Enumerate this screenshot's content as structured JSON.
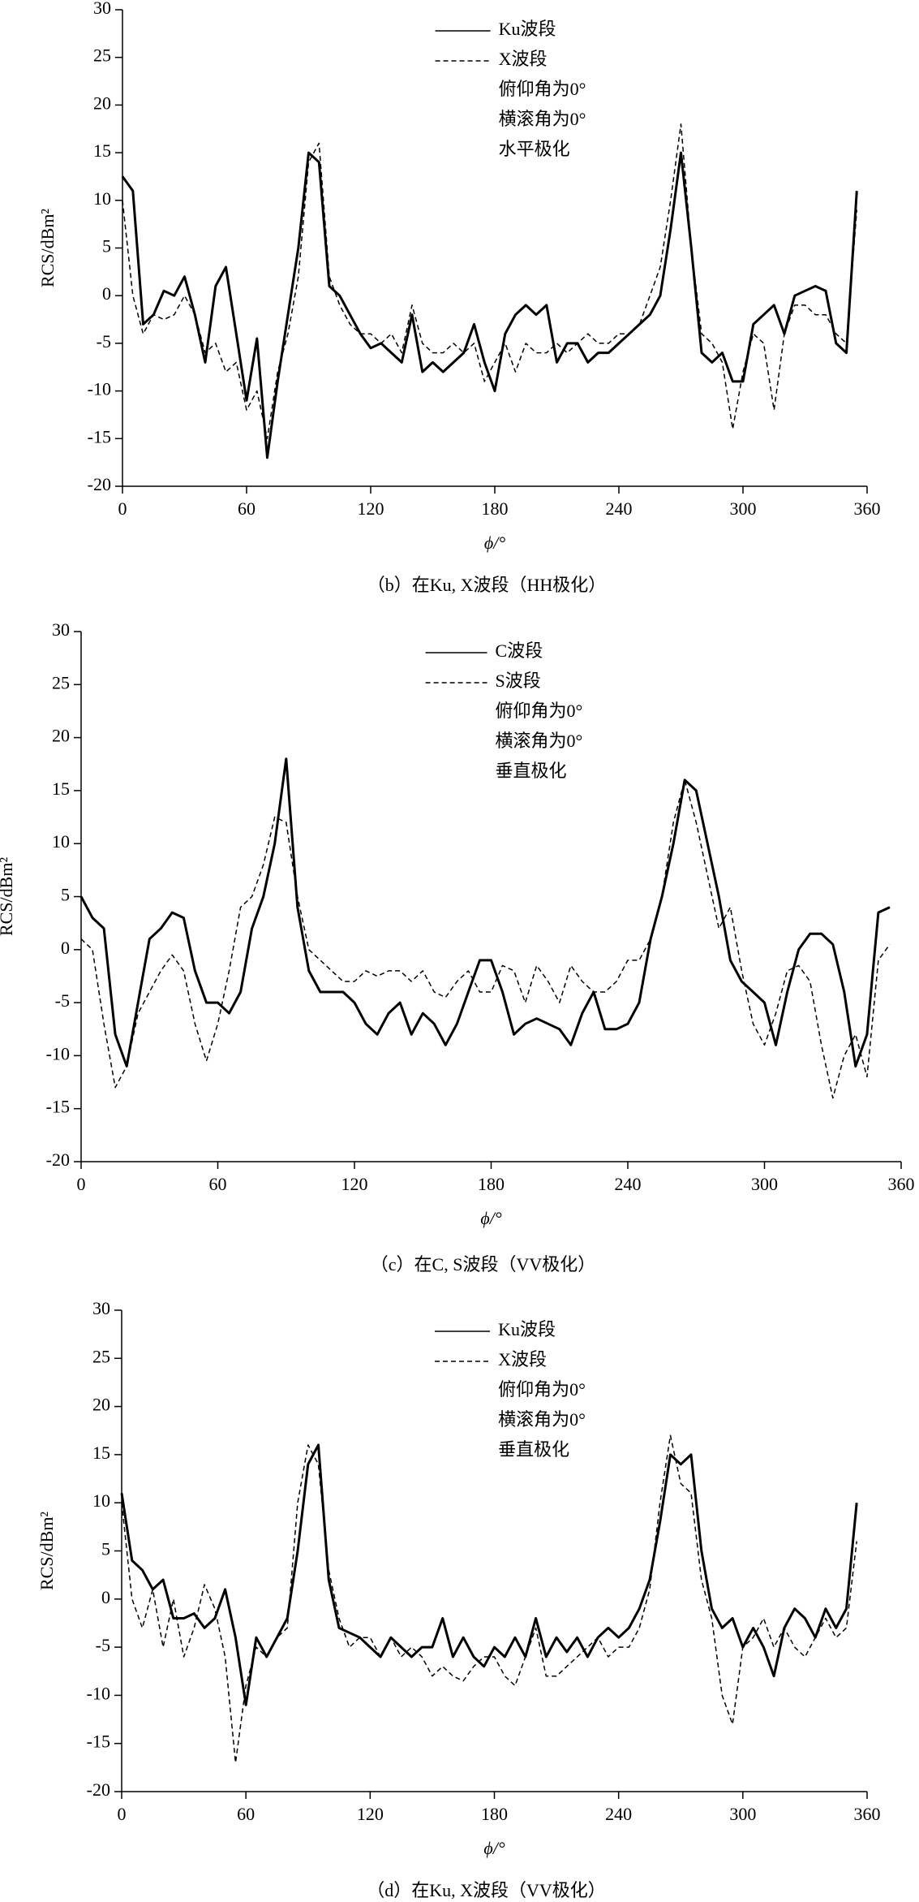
{
  "chart_data": [
    {
      "type": "line",
      "ylabel": "RCS/dBm²",
      "xlabel": "ϕ/°",
      "caption": "（b）在Ku, X波段（HH极化）",
      "annotations": [
        "俯仰角为0°",
        "横滚角为0°",
        "水平极化"
      ],
      "legend_loc": "upper-center",
      "xlim": [
        0,
        360
      ],
      "xticks": [
        0,
        60,
        120,
        180,
        240,
        300,
        360
      ],
      "ylim": [
        -20,
        30
      ],
      "yticks": [
        -20,
        -15,
        -10,
        -5,
        0,
        5,
        10,
        15,
        20,
        25,
        30
      ],
      "x": [
        0,
        5,
        10,
        15,
        20,
        25,
        30,
        35,
        40,
        45,
        50,
        55,
        60,
        65,
        70,
        75,
        80,
        85,
        90,
        95,
        100,
        105,
        110,
        115,
        120,
        125,
        130,
        135,
        140,
        145,
        150,
        155,
        160,
        165,
        170,
        175,
        180,
        185,
        190,
        195,
        200,
        205,
        210,
        215,
        220,
        225,
        230,
        235,
        240,
        245,
        250,
        255,
        260,
        265,
        270,
        275,
        280,
        285,
        290,
        295,
        300,
        305,
        310,
        315,
        320,
        325,
        330,
        335,
        340,
        345,
        350,
        355
      ],
      "series": [
        {
          "name": "Ku波段",
          "color": "#000000",
          "line_style": "solid",
          "values": [
            12.5,
            11,
            -3,
            -2,
            0.5,
            0,
            2,
            -2,
            -7,
            1,
            3,
            -4,
            -11,
            -4.5,
            -17,
            -9,
            -2,
            5,
            15,
            14,
            1,
            0,
            -2,
            -4,
            -5.5,
            -5,
            -6,
            -7,
            -2,
            -8,
            -7,
            -8,
            -7,
            -6,
            -3,
            -7,
            -10,
            -4,
            -2,
            -1,
            -2,
            -1,
            -7,
            -5,
            -5,
            -7,
            -6,
            -6,
            -5,
            -4,
            -3,
            -2,
            0,
            7,
            15,
            5,
            -6,
            -7,
            -6,
            -9,
            -9,
            -3,
            -2,
            -1,
            -4,
            0,
            0.5,
            1,
            0.5,
            -5,
            -6,
            11
          ]
        },
        {
          "name": "X波段",
          "color": "#000000",
          "line_style": "dashed",
          "values": [
            10,
            0,
            -4,
            -2,
            -2.5,
            -2,
            0,
            -2,
            -6,
            -5,
            -8,
            -7,
            -12,
            -10,
            -15,
            -8,
            -4,
            2,
            14,
            16,
            2,
            -1,
            -3,
            -4,
            -4,
            -5,
            -4,
            -6,
            -1,
            -5,
            -6,
            -6,
            -5,
            -6,
            -5,
            -9,
            -7,
            -5,
            -8,
            -5,
            -6,
            -6,
            -5,
            -6,
            -5,
            -4,
            -5,
            -5,
            -4,
            -4,
            -3,
            0,
            3,
            10,
            18,
            5,
            -4,
            -5,
            -7,
            -14,
            -8,
            -4,
            -5,
            -12,
            -4,
            -1,
            -1,
            -2,
            -2,
            -4,
            -5,
            9
          ]
        }
      ]
    },
    {
      "type": "line",
      "ylabel": "RCS/dBm²",
      "xlabel": "ϕ/°",
      "caption": "（c）在C, S波段（VV极化）",
      "annotations": [
        "俯仰角为0°",
        "横滚角为0°",
        "垂直极化"
      ],
      "legend_loc": "upper-center",
      "xlim": [
        0,
        360
      ],
      "xticks": [
        0,
        60,
        120,
        180,
        240,
        300,
        360
      ],
      "ylim": [
        -20,
        30
      ],
      "yticks": [
        -20,
        -15,
        -10,
        -5,
        0,
        5,
        10,
        15,
        20,
        25,
        30
      ],
      "x": [
        0,
        5,
        10,
        15,
        20,
        25,
        30,
        35,
        40,
        45,
        50,
        55,
        60,
        65,
        70,
        75,
        80,
        85,
        90,
        95,
        100,
        105,
        110,
        115,
        120,
        125,
        130,
        135,
        140,
        145,
        150,
        155,
        160,
        165,
        170,
        175,
        180,
        185,
        190,
        195,
        200,
        205,
        210,
        215,
        220,
        225,
        230,
        235,
        240,
        245,
        250,
        255,
        260,
        265,
        270,
        275,
        280,
        285,
        290,
        295,
        300,
        305,
        310,
        315,
        320,
        325,
        330,
        335,
        340,
        345,
        350,
        355
      ],
      "series": [
        {
          "name": "C波段",
          "color": "#000000",
          "line_style": "solid",
          "values": [
            5,
            3,
            2,
            -8,
            -11,
            -5,
            1,
            2,
            3.5,
            3,
            -2,
            -5,
            -5,
            -6,
            -4,
            2,
            5,
            10,
            18,
            4,
            -2,
            -4,
            -4,
            -4,
            -5,
            -7,
            -8,
            -6,
            -5,
            -8,
            -6,
            -7,
            -9,
            -7,
            -4,
            -1,
            -1,
            -4,
            -8,
            -7,
            -6.5,
            -7,
            -7.5,
            -9,
            -6,
            -4,
            -7.5,
            -7.5,
            -7,
            -5,
            1,
            5,
            10,
            16,
            15,
            10,
            5,
            -1,
            -3,
            -4,
            -5,
            -9,
            -4,
            0,
            1.5,
            1.5,
            0.5,
            -4,
            -11,
            -8,
            3.5,
            4
          ]
        },
        {
          "name": "S波段",
          "color": "#000000",
          "line_style": "dashed",
          "values": [
            1,
            0,
            -7,
            -13,
            -11,
            -6,
            -4,
            -2,
            -0.5,
            -2,
            -7,
            -10.5,
            -7,
            -2,
            4,
            5,
            8,
            12.5,
            12,
            5,
            0,
            -1,
            -2,
            -3,
            -3,
            -2,
            -2.5,
            -2,
            -2,
            -3,
            -2,
            -4,
            -4.5,
            -3,
            -2,
            -4,
            -4,
            -1.5,
            -2,
            -5,
            -1.5,
            -3,
            -5,
            -1.5,
            -3,
            -4,
            -4,
            -3,
            -1,
            -1,
            1,
            5,
            12,
            16,
            12,
            7,
            2,
            4,
            -2,
            -7,
            -9,
            -6,
            -2,
            -1.5,
            -3,
            -9,
            -14,
            -10,
            -8,
            -12,
            -1,
            0.5
          ]
        }
      ]
    },
    {
      "type": "line",
      "ylabel": "RCS/dBm²",
      "xlabel": "ϕ/°",
      "caption": "（d）在Ku, X波段（VV极化）",
      "annotations": [
        "俯仰角为0°",
        "横滚角为0°",
        "垂直极化"
      ],
      "legend_loc": "upper-center",
      "xlim": [
        0,
        360
      ],
      "xticks": [
        0,
        60,
        120,
        180,
        240,
        300,
        360
      ],
      "ylim": [
        -20,
        30
      ],
      "yticks": [
        -20,
        -15,
        -10,
        -5,
        0,
        5,
        10,
        15,
        20,
        25,
        30
      ],
      "x": [
        0,
        5,
        10,
        15,
        20,
        25,
        30,
        35,
        40,
        45,
        50,
        55,
        60,
        65,
        70,
        75,
        80,
        85,
        90,
        95,
        100,
        105,
        110,
        115,
        120,
        125,
        130,
        135,
        140,
        145,
        150,
        155,
        160,
        165,
        170,
        175,
        180,
        185,
        190,
        195,
        200,
        205,
        210,
        215,
        220,
        225,
        230,
        235,
        240,
        245,
        250,
        255,
        260,
        265,
        270,
        275,
        280,
        285,
        290,
        295,
        300,
        305,
        310,
        315,
        320,
        325,
        330,
        335,
        340,
        345,
        350,
        355
      ],
      "series": [
        {
          "name": "Ku波段",
          "color": "#000000",
          "line_style": "solid",
          "values": [
            11,
            4,
            3,
            1,
            2,
            -2,
            -2,
            -1.5,
            -3,
            -2,
            1,
            -4,
            -11,
            -4,
            -6,
            -4,
            -2,
            5,
            14,
            16,
            2,
            -3,
            -3.5,
            -4,
            -5,
            -6,
            -4,
            -5,
            -6,
            -5,
            -5,
            -2,
            -6,
            -4,
            -6,
            -7,
            -5,
            -6,
            -4,
            -6,
            -2,
            -6,
            -4,
            -5.5,
            -4,
            -6,
            -4,
            -3,
            -4,
            -3,
            -1,
            2,
            8,
            15,
            14,
            15,
            5,
            -1,
            -3,
            -2,
            -5,
            -3,
            -5,
            -8,
            -3,
            -1,
            -2,
            -4,
            -1,
            -3,
            -1,
            10
          ]
        },
        {
          "name": "X波段",
          "color": "#000000",
          "line_style": "dashed",
          "values": [
            10,
            0,
            -3,
            1,
            -5,
            0,
            -6,
            -3,
            1.5,
            -1,
            -6,
            -17,
            -9,
            -5,
            -6,
            -4,
            -3,
            10,
            16,
            14,
            3,
            -2,
            -5,
            -4,
            -4,
            -6,
            -4,
            -6,
            -5,
            -6,
            -8,
            -7,
            -8,
            -8.5,
            -7,
            -6,
            -6,
            -8,
            -9,
            -6,
            -3,
            -8,
            -8,
            -7,
            -6,
            -5,
            -4,
            -6,
            -5,
            -5,
            -3,
            1,
            10,
            17,
            12,
            11,
            2,
            -2,
            -10,
            -13,
            -5,
            -4,
            -2,
            -5,
            -3,
            -5,
            -6,
            -4,
            -2,
            -4,
            -3,
            6
          ]
        }
      ]
    }
  ]
}
